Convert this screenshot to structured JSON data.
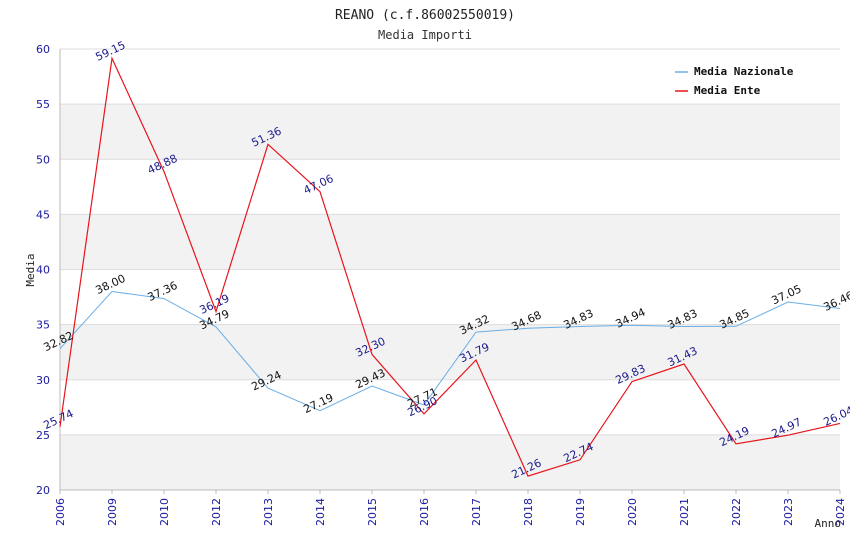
{
  "chart_data": {
    "type": "line",
    "title": "REANO (c.f.86002550019)",
    "subtitle": "Media Importi",
    "xlabel": "Anno",
    "ylabel": "Media",
    "categories": [
      "2006",
      "2009",
      "2010",
      "2012",
      "2013",
      "2014",
      "2015",
      "2016",
      "2017",
      "2018",
      "2019",
      "2020",
      "2021",
      "2022",
      "2023",
      "2024"
    ],
    "ylim": [
      20,
      60
    ],
    "yticks": [
      20,
      25,
      30,
      35,
      40,
      45,
      50,
      55,
      60
    ],
    "legend_position": "top-right",
    "series": [
      {
        "name": "Media Nazionale",
        "color": "#6aaee6",
        "values": [
          32.82,
          38.0,
          37.36,
          34.79,
          29.24,
          27.19,
          29.43,
          27.71,
          34.32,
          34.68,
          34.83,
          34.94,
          34.83,
          34.85,
          37.05,
          36.46
        ],
        "labels": [
          "32.82",
          "38.00",
          "37.36",
          "34.79",
          "29.24",
          "27.19",
          "29.43",
          "27.71",
          "34.32",
          "34.68",
          "34.83",
          "34.94",
          "34.83",
          "34.85",
          "37.05",
          "36.46"
        ]
      },
      {
        "name": "Media Ente",
        "color": "#e8141c",
        "values": [
          25.74,
          59.15,
          48.88,
          36.19,
          51.36,
          47.06,
          32.3,
          26.9,
          31.79,
          21.26,
          22.74,
          29.83,
          31.43,
          24.19,
          24.97,
          26.04
        ],
        "labels": [
          "25.74",
          "59.15",
          "48.88",
          "36.19",
          "51.36",
          "47.06",
          "32.30",
          "26.90",
          "31.79",
          "21.26",
          "22.74",
          "29.83",
          "31.43",
          "24.19",
          "24.97",
          "26.04"
        ]
      }
    ]
  }
}
